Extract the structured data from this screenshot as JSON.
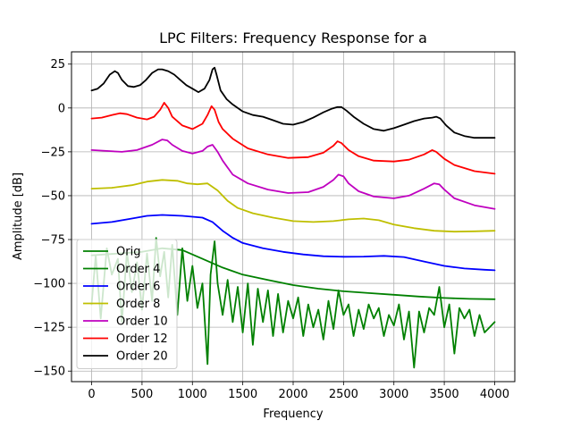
{
  "chart_data": {
    "type": "line",
    "title": "LPC Filters: Frequency Response for a",
    "xlabel": "Frequency",
    "ylabel": "Amplitude [dB]",
    "xlim": [
      -200,
      4200
    ],
    "ylim": [
      -156,
      32
    ],
    "xticks": [
      0,
      500,
      1000,
      1500,
      2000,
      2500,
      3000,
      3500,
      4000
    ],
    "yticks": [
      25,
      0,
      -25,
      -50,
      -75,
      -100,
      -125,
      -150
    ],
    "ytick_labels": [
      "25",
      "0",
      "−25",
      "−50",
      "−75",
      "−100",
      "−125",
      "−150"
    ],
    "grid": true,
    "legend_position": "lower-left",
    "series": [
      {
        "name": "Orig",
        "color": "#008000",
        "x": [
          0,
          40,
          90,
          150,
          200,
          260,
          300,
          350,
          400,
          450,
          500,
          550,
          600,
          640,
          680,
          720,
          760,
          800,
          850,
          900,
          950,
          1000,
          1050,
          1100,
          1150,
          1180,
          1220,
          1250,
          1300,
          1350,
          1400,
          1450,
          1500,
          1550,
          1600,
          1650,
          1700,
          1750,
          1800,
          1850,
          1900,
          1950,
          2000,
          2050,
          2100,
          2150,
          2200,
          2250,
          2300,
          2350,
          2400,
          2450,
          2500,
          2550,
          2600,
          2650,
          2700,
          2750,
          2800,
          2850,
          2900,
          2950,
          3000,
          3050,
          3100,
          3150,
          3200,
          3250,
          3300,
          3350,
          3400,
          3450,
          3500,
          3550,
          3600,
          3650,
          3700,
          3750,
          3800,
          3850,
          3900,
          3950,
          4000
        ],
        "y": [
          -112,
          -84,
          -120,
          -80,
          -95,
          -86,
          -122,
          -82,
          -105,
          -88,
          -115,
          -83,
          -110,
          -74,
          -96,
          -82,
          -108,
          -78,
          -118,
          -80,
          -110,
          -90,
          -114,
          -100,
          -146,
          -95,
          -76,
          -100,
          -118,
          -98,
          -122,
          -102,
          -128,
          -100,
          -135,
          -103,
          -122,
          -104,
          -130,
          -106,
          -128,
          -110,
          -120,
          -108,
          -130,
          -112,
          -125,
          -115,
          -132,
          -110,
          -126,
          -104,
          -118,
          -112,
          -130,
          -115,
          -126,
          -112,
          -120,
          -114,
          -130,
          -118,
          -124,
          -112,
          -132,
          -116,
          -148,
          -116,
          -128,
          -114,
          -118,
          -102,
          -125,
          -112,
          -140,
          -114,
          -120,
          -115,
          -130,
          -118,
          -128,
          -125,
          -122
        ]
      },
      {
        "name": "Order 4",
        "color": "#008000",
        "x": [
          0,
          500,
          700,
          900,
          1100,
          1300,
          1500,
          1750,
          2000,
          2250,
          2500,
          2750,
          3000,
          3250,
          3500,
          3750,
          4000
        ],
        "y": [
          -84,
          -82,
          -80,
          -81,
          -86,
          -91,
          -95,
          -98,
          -101,
          -103,
          -104.5,
          -105.5,
          -106.5,
          -107.5,
          -108.3,
          -108.8,
          -109
        ]
      },
      {
        "name": "Order 6",
        "color": "#0000ff",
        "x": [
          0,
          200,
          400,
          550,
          700,
          900,
          1000,
          1100,
          1200,
          1300,
          1400,
          1500,
          1700,
          1900,
          2100,
          2300,
          2500,
          2700,
          2900,
          3100,
          3300,
          3500,
          3700,
          3900,
          4000
        ],
        "y": [
          -66,
          -65,
          -63,
          -61.5,
          -61,
          -61.5,
          -62,
          -62.5,
          -65,
          -70,
          -74,
          -77,
          -80,
          -82,
          -83.5,
          -84.5,
          -84.8,
          -84.7,
          -84.3,
          -85,
          -87.5,
          -90,
          -91.5,
          -92.2,
          -92.5
        ]
      },
      {
        "name": "Order 8",
        "color": "#bfbf00",
        "x": [
          0,
          200,
          400,
          550,
          700,
          850,
          950,
          1050,
          1150,
          1250,
          1350,
          1450,
          1600,
          1800,
          2000,
          2200,
          2400,
          2550,
          2700,
          2850,
          3000,
          3200,
          3400,
          3600,
          3800,
          4000
        ],
        "y": [
          -46,
          -45.5,
          -44,
          -42,
          -41,
          -41.5,
          -43,
          -43.5,
          -43,
          -47,
          -53,
          -57,
          -60,
          -62.5,
          -64.5,
          -65,
          -64.5,
          -63.5,
          -63,
          -64,
          -66.5,
          -68.5,
          -70,
          -70.5,
          -70.3,
          -70
        ]
      },
      {
        "name": "Order 10",
        "color": "#bf00bf",
        "x": [
          0,
          150,
          300,
          450,
          600,
          700,
          750,
          800,
          900,
          1000,
          1100,
          1150,
          1200,
          1250,
          1300,
          1400,
          1550,
          1750,
          1950,
          2150,
          2300,
          2400,
          2450,
          2500,
          2550,
          2650,
          2800,
          3000,
          3150,
          3300,
          3400,
          3450,
          3500,
          3600,
          3800,
          4000
        ],
        "y": [
          -24,
          -24.5,
          -25,
          -24,
          -21,
          -18,
          -18.5,
          -21,
          -24.5,
          -26,
          -24.5,
          -22,
          -21,
          -25,
          -30,
          -38,
          -43,
          -46.5,
          -48.5,
          -48,
          -45,
          -41,
          -38,
          -39,
          -43,
          -47.5,
          -50.5,
          -51.5,
          -50,
          -46,
          -43,
          -43.5,
          -46.5,
          -51.5,
          -55.5,
          -57.5
        ]
      },
      {
        "name": "Order 12",
        "color": "#ff0000",
        "x": [
          0,
          100,
          200,
          280,
          350,
          450,
          550,
          620,
          680,
          720,
          760,
          800,
          900,
          1000,
          1100,
          1150,
          1190,
          1220,
          1260,
          1300,
          1400,
          1550,
          1750,
          1950,
          2150,
          2300,
          2400,
          2440,
          2480,
          2550,
          2650,
          2800,
          3000,
          3150,
          3300,
          3380,
          3420,
          3500,
          3600,
          3800,
          4000
        ],
        "y": [
          -6,
          -5.5,
          -4,
          -3,
          -3.5,
          -5.5,
          -6.5,
          -5,
          -1,
          3,
          0,
          -5,
          -10,
          -12,
          -9,
          -4,
          1,
          -1,
          -8,
          -12,
          -17.5,
          -23,
          -26.5,
          -28.5,
          -28,
          -25.5,
          -21.5,
          -19,
          -20,
          -24,
          -27.5,
          -30,
          -30.5,
          -29.5,
          -26.5,
          -24,
          -25,
          -29,
          -32.5,
          -36,
          -37.5
        ]
      },
      {
        "name": "Order 20",
        "color": "#000000",
        "x": [
          0,
          60,
          120,
          180,
          230,
          260,
          300,
          360,
          420,
          480,
          540,
          600,
          660,
          700,
          760,
          820,
          880,
          940,
          1000,
          1060,
          1120,
          1170,
          1200,
          1220,
          1240,
          1280,
          1340,
          1400,
          1500,
          1600,
          1700,
          1800,
          1900,
          2000,
          2100,
          2200,
          2300,
          2380,
          2440,
          2480,
          2530,
          2600,
          2700,
          2800,
          2900,
          3000,
          3100,
          3200,
          3300,
          3380,
          3420,
          3460,
          3520,
          3600,
          3700,
          3800,
          3900,
          4000
        ],
        "y": [
          10,
          11,
          14,
          19,
          21,
          20,
          16,
          12.5,
          12,
          13,
          16,
          20,
          22,
          22,
          21,
          19,
          16,
          13,
          11,
          9,
          11,
          16,
          22,
          23,
          19,
          10,
          5,
          2,
          -2,
          -4,
          -5,
          -7,
          -9,
          -9.5,
          -8,
          -5.5,
          -2.5,
          -0.5,
          0.5,
          0.5,
          -1.5,
          -5,
          -9,
          -12,
          -13,
          -11.5,
          -9.5,
          -7.5,
          -6,
          -5.5,
          -5,
          -6,
          -10,
          -14,
          -16,
          -17,
          -17,
          -17
        ]
      }
    ]
  }
}
